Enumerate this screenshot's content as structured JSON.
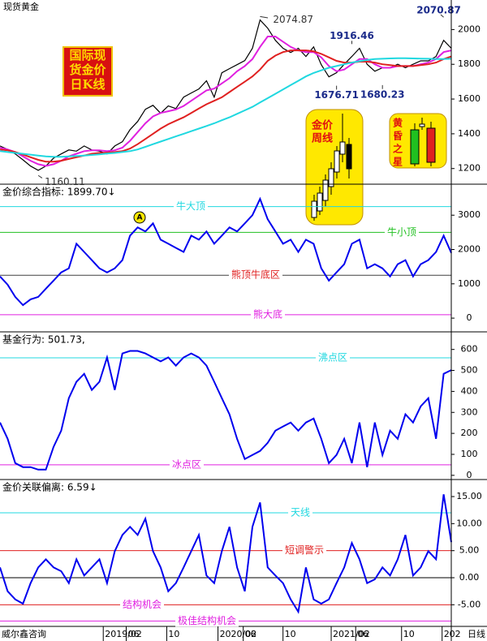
{
  "title": "现货黄金",
  "badges": {
    "daily": [
      "国际现",
      "货金价",
      "日K线"
    ],
    "weekly": [
      "金价",
      "周线"
    ],
    "pattern": [
      "黄",
      "昏",
      "之",
      "星"
    ]
  },
  "footer": {
    "brand": "威尔鑫咨询",
    "period": "日线"
  },
  "chart_data": [
    {
      "type": "line",
      "xlim": [
        0,
        59
      ],
      "ylim": [
        1110,
        2170
      ],
      "yticks": [
        1200,
        1400,
        1600,
        1800,
        2000
      ],
      "series": [
        {
          "color": "#000000",
          "values": [
            1330,
            1310,
            1284,
            1250,
            1214,
            1190,
            1214,
            1260,
            1284,
            1307,
            1300,
            1330,
            1307,
            1300,
            1284,
            1330,
            1354,
            1424,
            1471,
            1541,
            1564,
            1518,
            1560,
            1545,
            1611,
            1635,
            1658,
            1705,
            1611,
            1751,
            1775,
            1798,
            1821,
            1892,
            2055,
            2008,
            1938,
            1892,
            1868,
            1892,
            1845,
            1900,
            1798,
            1728,
            1751,
            1800,
            1845,
            1892,
            1800,
            1760,
            1780,
            1780,
            1800,
            1780,
            1800,
            1820,
            1820,
            1845,
            1938,
            1892
          ]
        },
        {
          "color": "#e020e0",
          "values": [
            1320,
            1310,
            1295,
            1270,
            1245,
            1225,
            1215,
            1225,
            1245,
            1270,
            1285,
            1300,
            1305,
            1305,
            1300,
            1305,
            1320,
            1360,
            1410,
            1460,
            1500,
            1520,
            1530,
            1540,
            1560,
            1590,
            1620,
            1650,
            1660,
            1690,
            1720,
            1760,
            1790,
            1830,
            1900,
            1960,
            1960,
            1930,
            1900,
            1880,
            1870,
            1870,
            1840,
            1790,
            1760,
            1770,
            1800,
            1830,
            1830,
            1800,
            1780,
            1780,
            1790,
            1790,
            1790,
            1800,
            1810,
            1830,
            1870,
            1880
          ]
        },
        {
          "color": "#e02020",
          "values": [
            1310,
            1305,
            1295,
            1280,
            1265,
            1250,
            1240,
            1240,
            1245,
            1255,
            1265,
            1275,
            1285,
            1290,
            1292,
            1295,
            1300,
            1315,
            1340,
            1370,
            1400,
            1430,
            1455,
            1475,
            1495,
            1520,
            1545,
            1570,
            1590,
            1610,
            1640,
            1670,
            1700,
            1730,
            1770,
            1820,
            1850,
            1870,
            1880,
            1880,
            1880,
            1875,
            1860,
            1840,
            1820,
            1810,
            1810,
            1815,
            1815,
            1810,
            1800,
            1795,
            1790,
            1790,
            1790,
            1795,
            1800,
            1810,
            1830,
            1845
          ]
        },
        {
          "color": "#20d8e0",
          "values": [
            1300,
            1295,
            1290,
            1285,
            1280,
            1275,
            1270,
            1268,
            1268,
            1270,
            1272,
            1275,
            1278,
            1282,
            1286,
            1290,
            1295,
            1300,
            1310,
            1325,
            1340,
            1355,
            1370,
            1385,
            1400,
            1415,
            1430,
            1445,
            1460,
            1478,
            1495,
            1515,
            1535,
            1555,
            1580,
            1605,
            1630,
            1655,
            1680,
            1705,
            1730,
            1750,
            1765,
            1780,
            1790,
            1800,
            1810,
            1818,
            1825,
            1830,
            1832,
            1834,
            1835,
            1835,
            1834,
            1833,
            1832,
            1830,
            1830,
            1832
          ]
        }
      ],
      "annotations": [
        {
          "value": 2074.87,
          "index": 34,
          "color": "#333333"
        },
        {
          "value": 1916.46,
          "index": 46,
          "color": "#1a2a8a"
        },
        {
          "value": 1676.71,
          "index": 44,
          "color": "#1a2a8a"
        },
        {
          "value": 1680.23,
          "index": 50,
          "color": "#1a2a8a"
        },
        {
          "value": 2070.87,
          "index": 58,
          "color": "#1a2a8a"
        },
        {
          "value": 1160.11,
          "index": 5,
          "color": "#333333"
        }
      ]
    },
    {
      "type": "line",
      "legend_text": "金价综合指标: 1899.70↓",
      "marker_label": "A",
      "xlim": [
        0,
        59
      ],
      "ylim": [
        -400,
        3880
      ],
      "yticks": [
        0,
        1000,
        2000,
        3000
      ],
      "series": [
        {
          "color": "#0000ee",
          "values": [
            1214,
            976,
            619,
            381,
            548,
            619,
            857,
            1095,
            1333,
            1452,
            2167,
            1929,
            1690,
            1452,
            1333,
            1452,
            1690,
            2405,
            2643,
            2524,
            2762,
            2286,
            2167,
            2048,
            1929,
            2405,
            2286,
            2524,
            2167,
            2405,
            2643,
            2524,
            2762,
            3000,
            3476,
            2881,
            2524,
            2167,
            2286,
            1929,
            2286,
            2167,
            1452,
            1095,
            1333,
            1571,
            2167,
            2286,
            1452,
            1571,
            1452,
            1214,
            1571,
            1690,
            1214,
            1571,
            1690,
            1929,
            2405,
            1899.7
          ]
        }
      ],
      "reference_lines": [
        {
          "value": 3250,
          "label": "牛大顶",
          "color": "#20d8e0"
        },
        {
          "value": 2500,
          "label": "牛小顶",
          "color": "#20c020"
        },
        {
          "value": 1250,
          "label": "熊顶牛底区",
          "color": "#404040",
          "label_color": "#e02020"
        },
        {
          "value": 100,
          "label": "熊大底",
          "color": "#e020e0"
        }
      ]
    },
    {
      "type": "line",
      "legend_text": "基金行为: 501.73,",
      "xlim": [
        0,
        59
      ],
      "ylim": [
        -20,
        680
      ],
      "yticks": [
        0,
        100,
        200,
        300,
        400,
        500,
        600
      ],
      "series": [
        {
          "color": "#0000ee",
          "values": [
            252,
            174,
            58,
            39,
            39,
            27,
            27,
            136,
            213,
            368,
            446,
            484,
            407,
            446,
            562,
            407,
            581,
            593,
            593,
            581,
            562,
            543,
            562,
            523,
            562,
            581,
            562,
            523,
            446,
            368,
            291,
            174,
            78,
            97,
            116,
            155,
            213,
            233,
            252,
            213,
            252,
            271,
            174,
            58,
            97,
            174,
            58,
            252,
            39,
            252,
            97,
            213,
            174,
            291,
            252,
            329,
            368,
            174,
            484,
            501.73
          ]
        }
      ],
      "reference_lines": [
        {
          "value": 560,
          "label": "沸点区",
          "color": "#20d8e0"
        },
        {
          "value": 50,
          "label": "冰点区",
          "color": "#e020e0"
        }
      ]
    },
    {
      "type": "line",
      "legend_text": "金价关联偏离: 6.59↓",
      "xlim": [
        0,
        59
      ],
      "ylim": [
        -9,
        18
      ],
      "yticks": [
        {
          "value": -5,
          "label": "-5.00"
        },
        {
          "value": 0,
          "label": "0.00"
        },
        {
          "value": 5,
          "label": "5.00"
        },
        {
          "value": 10,
          "label": "10.00"
        },
        {
          "value": 15,
          "label": "15.00"
        }
      ],
      "xticks": [
        {
          "value": 13.5,
          "label": "2019/02"
        },
        {
          "value": 16.5,
          "label": "06"
        },
        {
          "value": 21.8,
          "label": "10"
        },
        {
          "value": 28.5,
          "label": "2020/02"
        },
        {
          "value": 31.8,
          "label": "06"
        },
        {
          "value": 37,
          "label": "10"
        },
        {
          "value": 43.3,
          "label": "2021/02"
        },
        {
          "value": 46.5,
          "label": "06"
        },
        {
          "value": 52.5,
          "label": "10"
        },
        {
          "value": 57.8,
          "label": "202"
        }
      ],
      "series": [
        {
          "color": "#0000ee",
          "values": [
            1.9,
            -2.5,
            -4.0,
            -4.8,
            -1.0,
            1.9,
            3.4,
            1.9,
            1.2,
            -1.0,
            3.4,
            0.4,
            1.9,
            3.4,
            -1.0,
            4.9,
            7.9,
            9.4,
            7.9,
            10.9,
            4.9,
            1.9,
            -2.5,
            -1.0,
            1.9,
            4.9,
            7.9,
            0.4,
            -1.0,
            4.9,
            9.4,
            1.9,
            -2.5,
            9.4,
            13.9,
            1.9,
            0.4,
            -1.0,
            -4.0,
            -6.3,
            1.9,
            -4.0,
            -4.8,
            -4.0,
            -1.0,
            1.9,
            6.4,
            3.4,
            -1.0,
            -0.3,
            1.9,
            0.4,
            3.4,
            7.9,
            0.4,
            1.9,
            4.9,
            3.4,
            15.4,
            6.59
          ]
        }
      ],
      "reference_lines": [
        {
          "value": 12,
          "label": "天线",
          "color": "#20d8e0"
        },
        {
          "value": 5,
          "label": "短调警示",
          "color": "#e02020"
        },
        {
          "value": 0,
          "color": "#000000"
        },
        {
          "value": -5,
          "label": "结构机会",
          "color": "#e02020",
          "label_color": "#e020e0"
        },
        {
          "value": -8,
          "label": "极佳结构机会",
          "color": "#e020e0"
        }
      ]
    }
  ]
}
